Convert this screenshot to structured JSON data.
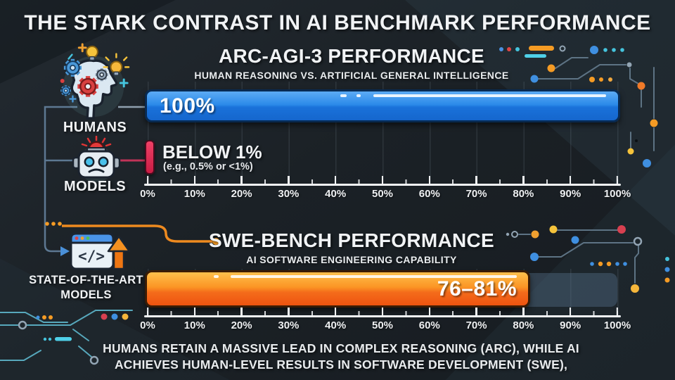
{
  "page_title": "THE STARK CONTRAST IN AI BENCHMARK PERFORMANCE",
  "sidebar": {
    "humans_label": "HUMANS",
    "models_label": "MODELS",
    "sota_label_line1": "STATE-OF-THE-ART",
    "sota_label_line2": "MODELS"
  },
  "arc_chart": {
    "title": "ARC-AGI-3 PERFORMANCE",
    "subtitle": "HUMAN REASONING VS. ARTIFICIAL GENERAL INTELLIGENCE",
    "human_bar_label": "100%",
    "model_bar_label": "BELOW 1%",
    "model_bar_sublabel": "(e.g., 0.5% or <1%)"
  },
  "swe_chart": {
    "title": "SWE-BENCH PERFORMANCE",
    "subtitle": "AI SOFTWARE ENGINEERING CAPABILITY",
    "bar_label": "76–81%"
  },
  "axis_ticks": [
    "0%",
    "10%",
    "20%",
    "30%",
    "40%",
    "50%",
    "60%",
    "70%",
    "80%",
    "90%",
    "100%"
  ],
  "footer": {
    "line1": "HUMANS RETAIN A MASSIVE LEAD IN COMPLEX REASONING (ARC), WHILE AI",
    "line2": "ACHIEVES HUMAN-LEVEL RESULTS IN SOFTWARE DEVELOPMENT (SWE),"
  },
  "colors": {
    "human_bar": "#2b8ae9",
    "model_bar": "#c81d44",
    "sota_bar": "#fb9524",
    "track": "#56708a",
    "background": "#1b2126"
  },
  "chart_data": [
    {
      "type": "bar",
      "orientation": "horizontal",
      "title": "ARC-AGI-3 PERFORMANCE",
      "subtitle": "HUMAN REASONING VS. ARTIFICIAL GENERAL INTELLIGENCE",
      "categories": [
        "HUMANS",
        "MODELS"
      ],
      "values": [
        100,
        0.5
      ],
      "value_labels": [
        "100%",
        "BELOW 1% (e.g., 0.5% or <1%)"
      ],
      "xlim": [
        0,
        100
      ],
      "tick_step": 10,
      "unit": "%",
      "grid": true
    },
    {
      "type": "bar",
      "orientation": "horizontal",
      "title": "SWE-BENCH PERFORMANCE",
      "subtitle": "AI SOFTWARE ENGINEERING CAPABILITY",
      "categories": [
        "STATE-OF-THE-ART MODELS"
      ],
      "values": [
        81
      ],
      "value_range": [
        76,
        81
      ],
      "value_labels": [
        "76–81%"
      ],
      "xlim": [
        0,
        100
      ],
      "tick_step": 10,
      "unit": "%",
      "grid": true
    }
  ]
}
